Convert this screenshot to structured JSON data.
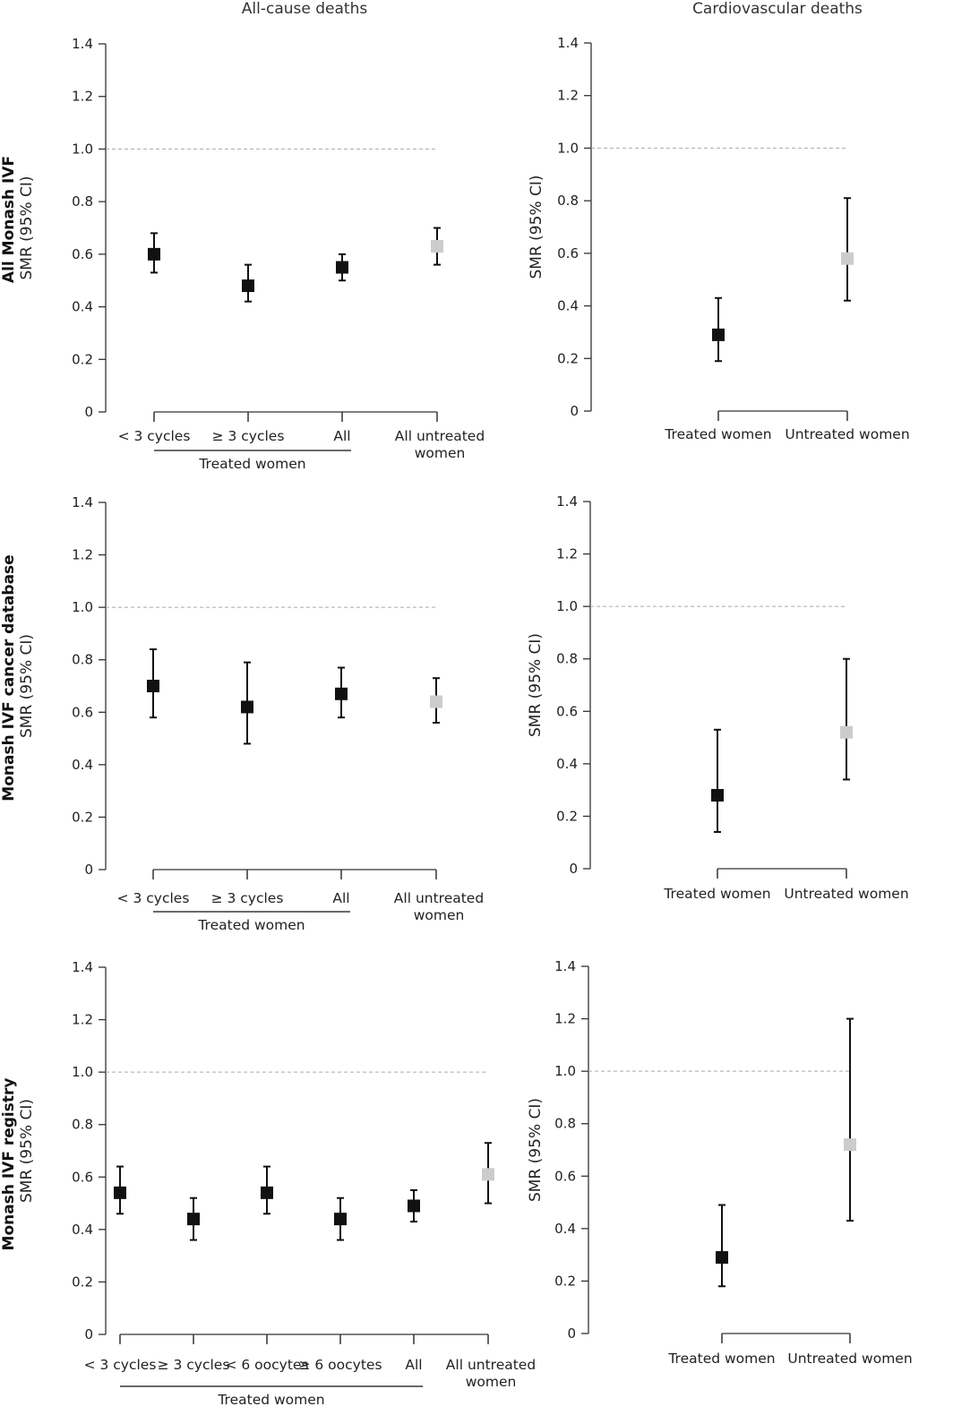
{
  "column_titles": [
    "All-cause deaths",
    "Cardiovascular deaths"
  ],
  "row_labels": [
    "All Monash IVF",
    "Monash IVF cancer database",
    "Monash IVF registry"
  ],
  "colors": {
    "treated": "#111111",
    "untreated": "#cccccc",
    "reference_line": "#aaaaaa"
  },
  "chart_data": [
    {
      "type": "scatter",
      "errorbars": true,
      "column": "All-cause deaths",
      "row": "All Monash IVF",
      "ylabel": "SMR (95% CI)",
      "ylim": [
        0,
        1.4
      ],
      "yticks": [
        "0",
        "0.2",
        "0.4",
        "0.6",
        "0.8",
        "1.0",
        "1.2",
        "1.4"
      ],
      "reference_line": 1.0,
      "categories": [
        [
          "< 3 cycles"
        ],
        [
          "≥ 3 cycles"
        ],
        [
          "All"
        ],
        [
          "All untreated",
          "women"
        ]
      ],
      "values": [
        0.6,
        0.48,
        0.55,
        0.63
      ],
      "lower": [
        0.53,
        0.42,
        0.5,
        0.56
      ],
      "upper": [
        0.68,
        0.56,
        0.6,
        0.7
      ],
      "groups": [
        "treated",
        "treated",
        "treated",
        "untreated"
      ],
      "group_label": "Treated women",
      "group_span": [
        0,
        2
      ]
    },
    {
      "type": "scatter",
      "errorbars": true,
      "column": "Cardiovascular deaths",
      "row": "All Monash IVF",
      "ylabel": "SMR (95% CI)",
      "ylim": [
        0,
        1.4
      ],
      "yticks": [
        "0",
        "0.2",
        "0.4",
        "0.6",
        "0.8",
        "1.0",
        "1.2",
        "1.4"
      ],
      "reference_line": 1.0,
      "categories": [
        [
          "Treated women"
        ],
        [
          "Untreated women"
        ]
      ],
      "values": [
        0.29,
        0.58
      ],
      "lower": [
        0.19,
        0.42
      ],
      "upper": [
        0.43,
        0.81
      ],
      "groups": [
        "treated",
        "untreated"
      ]
    },
    {
      "type": "scatter",
      "errorbars": true,
      "column": "All-cause deaths",
      "row": "Monash IVF cancer database",
      "ylabel": "SMR (95% CI)",
      "ylim": [
        0,
        1.4
      ],
      "yticks": [
        "0",
        "0.2",
        "0.4",
        "0.6",
        "0.8",
        "1.0",
        "1.2",
        "1.4"
      ],
      "reference_line": 1.0,
      "categories": [
        [
          "< 3 cycles"
        ],
        [
          "≥ 3 cycles"
        ],
        [
          "All"
        ],
        [
          "All untreated",
          "women"
        ]
      ],
      "values": [
        0.7,
        0.62,
        0.67,
        0.64
      ],
      "lower": [
        0.58,
        0.48,
        0.58,
        0.56
      ],
      "upper": [
        0.84,
        0.79,
        0.77,
        0.73
      ],
      "groups": [
        "treated",
        "treated",
        "treated",
        "untreated"
      ],
      "group_label": "Treated women",
      "group_span": [
        0,
        2
      ]
    },
    {
      "type": "scatter",
      "errorbars": true,
      "column": "Cardiovascular deaths",
      "row": "Monash IVF cancer database",
      "ylabel": "SMR (95% CI)",
      "ylim": [
        0,
        1.4
      ],
      "yticks": [
        "0",
        "0.2",
        "0.4",
        "0.6",
        "0.8",
        "1.0",
        "1.2",
        "1.4"
      ],
      "reference_line": 1.0,
      "categories": [
        [
          "Treated women"
        ],
        [
          "Untreated women"
        ]
      ],
      "values": [
        0.28,
        0.52
      ],
      "lower": [
        0.14,
        0.34
      ],
      "upper": [
        0.53,
        0.8
      ],
      "groups": [
        "treated",
        "untreated"
      ]
    },
    {
      "type": "scatter",
      "errorbars": true,
      "column": "All-cause deaths",
      "row": "Monash IVF registry",
      "ylabel": "SMR (95% CI)",
      "ylim": [
        0,
        1.4
      ],
      "yticks": [
        "0",
        "0.2",
        "0.4",
        "0.6",
        "0.8",
        "1.0",
        "1.2",
        "1.4"
      ],
      "reference_line": 1.0,
      "categories": [
        [
          "< 3 cycles"
        ],
        [
          "≥ 3 cycles"
        ],
        [
          "< 6 oocytes"
        ],
        [
          "≥ 6 oocytes"
        ],
        [
          "All"
        ],
        [
          "All untreated",
          "women"
        ]
      ],
      "values": [
        0.54,
        0.44,
        0.54,
        0.44,
        0.49,
        0.61
      ],
      "lower": [
        0.46,
        0.36,
        0.46,
        0.36,
        0.43,
        0.5
      ],
      "upper": [
        0.64,
        0.52,
        0.64,
        0.52,
        0.55,
        0.73
      ],
      "groups": [
        "treated",
        "treated",
        "treated",
        "treated",
        "treated",
        "untreated"
      ],
      "group_label": "Treated women",
      "group_span": [
        0,
        4
      ]
    },
    {
      "type": "scatter",
      "errorbars": true,
      "column": "Cardiovascular deaths",
      "row": "Monash IVF registry",
      "ylabel": "SMR (95% CI)",
      "ylim": [
        0,
        1.4
      ],
      "yticks": [
        "0",
        "0.2",
        "0.4",
        "0.6",
        "0.8",
        "1.0",
        "1.2",
        "1.4"
      ],
      "reference_line": 1.0,
      "categories": [
        [
          "Treated women"
        ],
        [
          "Untreated women"
        ]
      ],
      "values": [
        0.29,
        0.72
      ],
      "lower": [
        0.18,
        0.43
      ],
      "upper": [
        0.49,
        1.2
      ],
      "groups": [
        "treated",
        "untreated"
      ]
    }
  ]
}
